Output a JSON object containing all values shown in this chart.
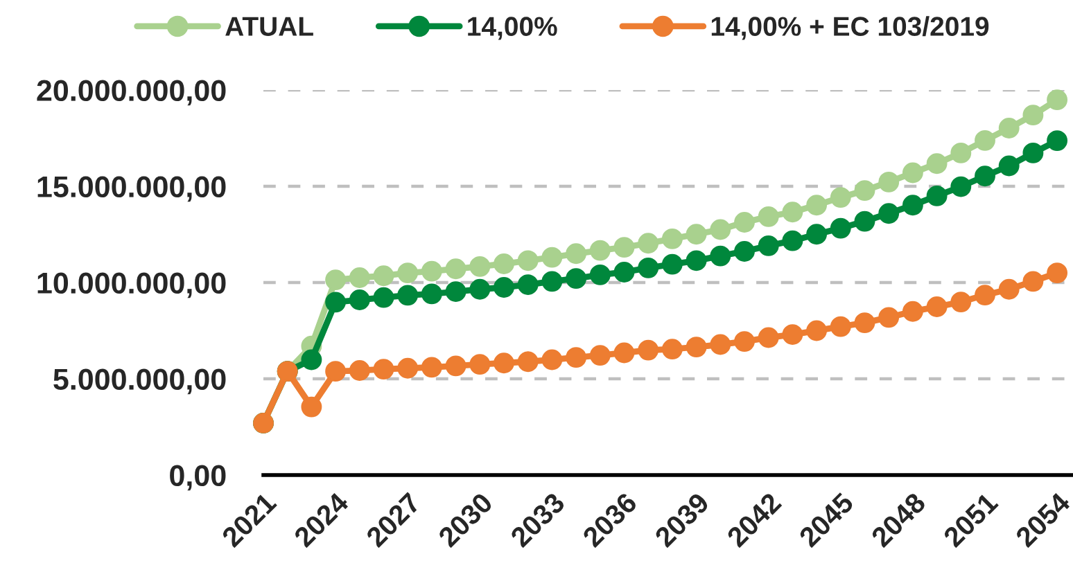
{
  "chart_data": {
    "type": "line",
    "x": [
      2021,
      2022,
      2023,
      2024,
      2025,
      2026,
      2027,
      2028,
      2029,
      2030,
      2031,
      2032,
      2033,
      2034,
      2035,
      2036,
      2037,
      2038,
      2039,
      2040,
      2041,
      2042,
      2043,
      2044,
      2045,
      2046,
      2047,
      2048,
      2049,
      2050,
      2051,
      2052,
      2053,
      2054
    ],
    "series": [
      {
        "name": "ATUAL",
        "color": "#a9d18e",
        "values": [
          2700000,
          5390000,
          6700000,
          10140000,
          10250000,
          10350000,
          10500000,
          10590000,
          10710000,
          10830000,
          10970000,
          11140000,
          11310000,
          11500000,
          11670000,
          11830000,
          12040000,
          12270000,
          12510000,
          12750000,
          13130000,
          13420000,
          13660000,
          14020000,
          14420000,
          14780000,
          15220000,
          15700000,
          16180000,
          16730000,
          17380000,
          18020000,
          18700000,
          19490000
        ]
      },
      {
        "name": "14,00%",
        "color": "#00873c",
        "values": [
          2700000,
          5390000,
          5990000,
          8980000,
          9100000,
          9220000,
          9340000,
          9410000,
          9530000,
          9650000,
          9750000,
          9890000,
          10060000,
          10210000,
          10400000,
          10540000,
          10760000,
          10950000,
          11140000,
          11380000,
          11620000,
          11910000,
          12170000,
          12510000,
          12820000,
          13180000,
          13590000,
          14020000,
          14500000,
          14980000,
          15530000,
          16060000,
          16730000,
          17370000
        ]
      },
      {
        "name": "14,00% + EC 103/2019",
        "color": "#ed7d31",
        "values": [
          2700000,
          5390000,
          3540000,
          5390000,
          5430000,
          5500000,
          5550000,
          5600000,
          5670000,
          5750000,
          5820000,
          5890000,
          5990000,
          6110000,
          6220000,
          6350000,
          6490000,
          6540000,
          6650000,
          6780000,
          6940000,
          7140000,
          7300000,
          7500000,
          7710000,
          7910000,
          8190000,
          8500000,
          8740000,
          8990000,
          9350000,
          9650000,
          10060000,
          10500000
        ]
      }
    ],
    "xlim": [
      2021,
      2054.66
    ],
    "xticks": [
      2021,
      2024,
      2027,
      2030,
      2033,
      2036,
      2039,
      2042,
      2045,
      2048,
      2051,
      2054
    ],
    "ylim": [
      0,
      20000000
    ],
    "yticks": [
      {
        "value": 0,
        "label": "0,00"
      },
      {
        "value": 5000000,
        "label": "5.000.000,00"
      },
      {
        "value": 10000000,
        "label": "10.000.000,00"
      },
      {
        "value": 15000000,
        "label": "15.000.000,00"
      },
      {
        "value": 20000000,
        "label": "20.000.000,00"
      }
    ],
    "grid": "y",
    "legend": "top",
    "marker": "circle",
    "line_style": "solid"
  }
}
